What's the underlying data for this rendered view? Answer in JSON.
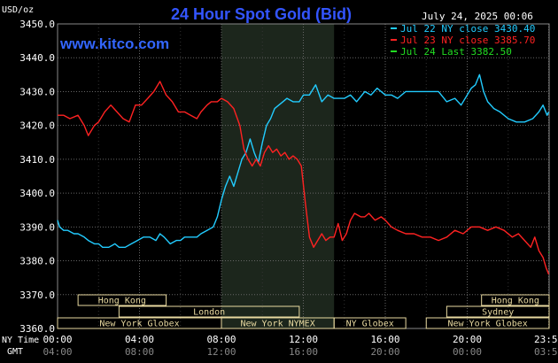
{
  "chart_data": {
    "type": "line",
    "title": "24 Hour Spot Gold (Bid)",
    "watermark": "www.kitco.com",
    "date": "July 24, 2025 00:06",
    "ylabel": "USD/oz",
    "ylim": [
      3360,
      3450
    ],
    "y_ticks": [
      "3450.0",
      "3440.0",
      "3430.0",
      "3420.0",
      "3410.0",
      "3400.0",
      "3390.0",
      "3380.0",
      "3370.0",
      "3360.0"
    ],
    "y_tick_values": [
      3450,
      3440,
      3430,
      3420,
      3410,
      3400,
      3390,
      3380,
      3370,
      3360
    ],
    "xlim": [
      0,
      24
    ],
    "x_row_ny_label": "NY Time",
    "x_row_gmt_label": "GMT",
    "x_ticks_ny": [
      "00:00",
      "04:00",
      "08:00",
      "12:00",
      "16:00",
      "20:00",
      "23:59"
    ],
    "x_ticks_gmt": [
      "04:00",
      "08:00",
      "12:00",
      "16:00",
      "20:00",
      "00:00",
      "03:59"
    ],
    "x_tick_hours": [
      0,
      4,
      8,
      12,
      16,
      20,
      23.98
    ],
    "grid": true,
    "colors": {
      "background": "#000000",
      "grid": "#666666",
      "title": "#3355ff",
      "watermark": "#3366ff",
      "axis_text": "#ffffff",
      "shade": "#1c261c",
      "sessions": "#e8d9a0",
      "session_text": "#6a4a10"
    },
    "nymex_shade": [
      8,
      13.5
    ],
    "legend": [
      {
        "text": "Jul 22 NY close 3430.40",
        "color": "#22ccff"
      },
      {
        "text": "Jul 23 NY close 3385.70",
        "color": "#ff2222"
      },
      {
        "text": "Jul 24 Last 3382.50",
        "color": "#22dd22"
      }
    ],
    "sessions": [
      {
        "label": "Hong Kong",
        "start": 1.0,
        "end": 5.3,
        "row": 0
      },
      {
        "label": "London",
        "start": 3.0,
        "end": 11.8,
        "row": 1
      },
      {
        "label": "New York Globex",
        "start": 0.0,
        "end": 8.0,
        "row": 2
      },
      {
        "label": "New York NYMEX",
        "start": 8.0,
        "end": 13.5,
        "row": 2
      },
      {
        "label": "NY Globex",
        "start": 13.5,
        "end": 17.0,
        "row": 2
      },
      {
        "label": "Hong Kong",
        "start": 20.7,
        "end": 24.0,
        "row": 0
      },
      {
        "label": "Sydney",
        "start": 19.0,
        "end": 24.0,
        "row": 1
      },
      {
        "label": "New York Globex",
        "start": 18.0,
        "end": 24.0,
        "row": 2
      }
    ],
    "series": [
      {
        "name": "Jul 22",
        "color": "#22ccff",
        "x": [
          0.0,
          0.1,
          0.3,
          0.5,
          0.8,
          1.0,
          1.3,
          1.5,
          1.8,
          2.0,
          2.2,
          2.5,
          2.8,
          3.0,
          3.3,
          3.6,
          3.9,
          4.2,
          4.5,
          4.8,
          5.0,
          5.2,
          5.5,
          5.8,
          6.0,
          6.2,
          6.5,
          6.8,
          7.0,
          7.3,
          7.6,
          7.8,
          8.0,
          8.2,
          8.4,
          8.6,
          8.8,
          9.0,
          9.2,
          9.4,
          9.6,
          9.8,
          10.0,
          10.2,
          10.4,
          10.6,
          10.8,
          11.0,
          11.2,
          11.5,
          11.8,
          12.0,
          12.3,
          12.6,
          12.9,
          13.2,
          13.5,
          13.8,
          14.0,
          14.3,
          14.6,
          15.0,
          15.3,
          15.6,
          16.0,
          16.3,
          16.6,
          17.0,
          17.4,
          17.8,
          18.2,
          18.6,
          19.0,
          19.4,
          19.7,
          20.0,
          20.2,
          20.4,
          20.6,
          20.8,
          21.0,
          21.3,
          21.6,
          22.0,
          22.4,
          22.8,
          23.2,
          23.5,
          23.7,
          23.9,
          23.98
        ],
        "y": [
          3392,
          3390,
          3389,
          3389,
          3388,
          3388,
          3387,
          3386,
          3385,
          3385,
          3384,
          3384,
          3385,
          3384,
          3384,
          3385,
          3386,
          3387,
          3387,
          3386,
          3388,
          3387,
          3385,
          3386,
          3386,
          3387,
          3387,
          3387,
          3388,
          3389,
          3390,
          3393,
          3398,
          3402,
          3405,
          3402,
          3406,
          3410,
          3412,
          3416,
          3412,
          3409,
          3415,
          3420,
          3422,
          3425,
          3426,
          3427,
          3428,
          3427,
          3427,
          3429,
          3429,
          3432,
          3427,
          3429,
          3428,
          3428,
          3428,
          3429,
          3427,
          3430,
          3429,
          3431,
          3429,
          3429,
          3428,
          3430,
          3430,
          3430,
          3430,
          3430,
          3427,
          3428,
          3426,
          3429,
          3431,
          3432,
          3435,
          3430,
          3427,
          3425,
          3424,
          3422,
          3421,
          3421,
          3422,
          3424,
          3426,
          3423,
          3424
        ]
      },
      {
        "name": "Jul 23",
        "color": "#ff2222",
        "x": [
          0.0,
          0.3,
          0.6,
          1.0,
          1.3,
          1.5,
          1.8,
          2.0,
          2.3,
          2.6,
          2.9,
          3.2,
          3.5,
          3.8,
          4.1,
          4.4,
          4.7,
          5.0,
          5.3,
          5.6,
          5.9,
          6.2,
          6.5,
          6.8,
          7.0,
          7.3,
          7.5,
          7.8,
          8.0,
          8.3,
          8.6,
          8.9,
          9.1,
          9.3,
          9.5,
          9.7,
          9.9,
          10.1,
          10.3,
          10.5,
          10.7,
          10.9,
          11.1,
          11.3,
          11.5,
          11.7,
          11.9,
          12.1,
          12.3,
          12.5,
          12.7,
          12.9,
          13.1,
          13.3,
          13.5,
          13.7,
          13.9,
          14.1,
          14.3,
          14.5,
          14.8,
          15.0,
          15.2,
          15.5,
          15.8,
          16.0,
          16.3,
          16.6,
          17.0,
          17.4,
          17.8,
          18.2,
          18.6,
          19.0,
          19.4,
          19.8,
          20.2,
          20.6,
          21.0,
          21.4,
          21.8,
          22.2,
          22.5,
          22.8,
          23.1,
          23.3,
          23.5,
          23.7,
          23.85,
          23.98
        ],
        "y": [
          3423,
          3423,
          3422,
          3423,
          3420,
          3417,
          3420,
          3421,
          3424,
          3426,
          3424,
          3422,
          3421,
          3426,
          3426,
          3428,
          3430,
          3433,
          3429,
          3427,
          3424,
          3424,
          3423,
          3422,
          3424,
          3426,
          3427,
          3427,
          3428,
          3427,
          3425,
          3420,
          3413,
          3410,
          3408,
          3410,
          3408,
          3412,
          3414,
          3412,
          3413,
          3411,
          3412,
          3410,
          3411,
          3410,
          3408,
          3397,
          3387,
          3384,
          3386,
          3388,
          3386,
          3387,
          3387,
          3391,
          3386,
          3388,
          3392,
          3394,
          3393,
          3393,
          3394,
          3392,
          3393,
          3392,
          3390,
          3389,
          3388,
          3388,
          3387,
          3387,
          3386,
          3387,
          3389,
          3388,
          3390,
          3390,
          3389,
          3390,
          3389,
          3387,
          3388,
          3386,
          3384,
          3387,
          3383,
          3381,
          3378,
          3376
        ]
      },
      {
        "name": "Jul 24",
        "color": "#22dd22",
        "x": [
          23.98,
          24.0
        ],
        "y": [
          3382.5,
          3382.5
        ]
      }
    ]
  }
}
